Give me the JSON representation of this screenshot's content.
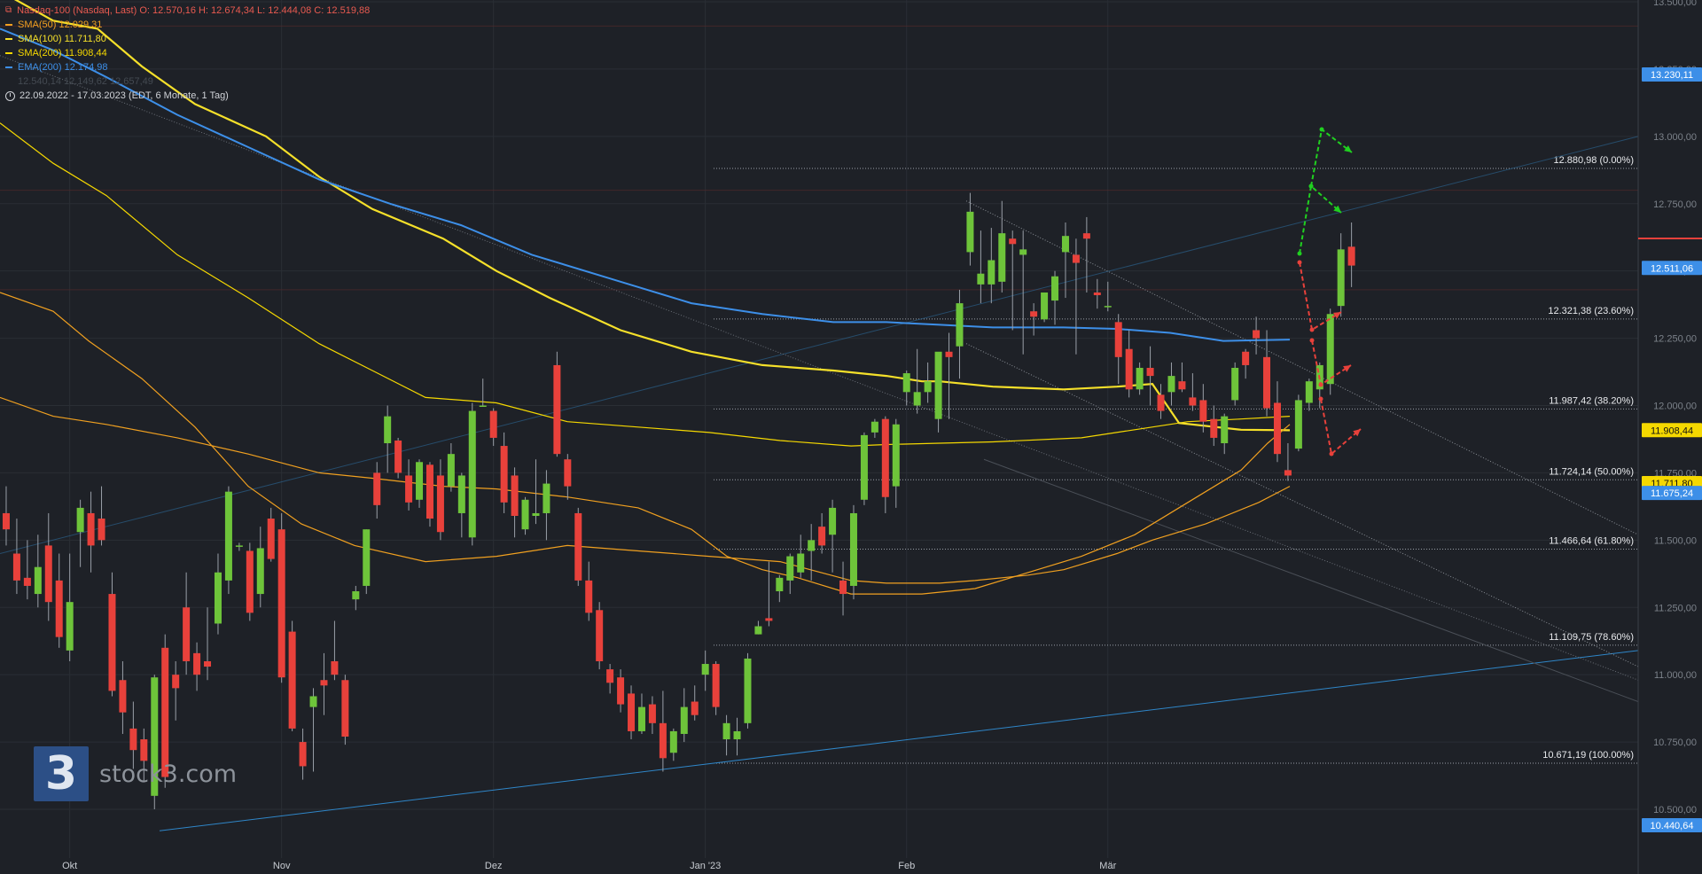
{
  "legend": {
    "header": "Nasdaq-100 (Nasdaq, Last)  O: 12.570,16  H: 12.674,34  L: 12.444,08  C: 12.519,88",
    "sma50": "SMA(50)  12.029,31",
    "sma100": "SMA(100)  11.711,80",
    "sma200": "SMA(200)  11.908,44",
    "ema200": "EMA(200)  12.174,98",
    "sub": "12.540,14  12.149,62  12.657,49",
    "date_range": "22.09.2022 - 17.03.2023   (EDT, 6 Monate, 1 Tag)"
  },
  "logo": {
    "mark": "3",
    "name": "stock3.com"
  },
  "colors": {
    "up": "#6ec43a",
    "down": "#e8413b",
    "background": "#1e2127",
    "sma50": "#f0a020",
    "sma100": "#f5e02a",
    "sma200": "#f5d800",
    "ema200": "#3d8fe8"
  },
  "chart_data": {
    "type": "candlestick",
    "ylim": [
      10400,
      13600
    ],
    "y_ticks": [
      "10.500,00",
      "10.750,00",
      "11.000,00",
      "11.250,00",
      "11.500,00",
      "11.750,00",
      "12.000,00",
      "12.250,00",
      "12.500,00",
      "12.750,00",
      "13.000,00",
      "13.250,00",
      "13.500,00"
    ],
    "y_tick_values": [
      10500,
      10750,
      11000,
      11250,
      11500,
      11750,
      12000,
      12250,
      12500,
      12750,
      13000,
      13250,
      13500
    ],
    "x_labels": [
      "Okt",
      "Nov",
      "Dez",
      "Jan '23",
      "Feb",
      "Mär"
    ],
    "x_label_index": [
      6,
      26,
      46,
      66,
      85,
      104
    ],
    "ohlc": [
      [
        11600,
        11700,
        11480,
        11540
      ],
      [
        11450,
        11580,
        11300,
        11350
      ],
      [
        11360,
        11500,
        11280,
        11330
      ],
      [
        11300,
        11520,
        11250,
        11400
      ],
      [
        11480,
        11600,
        11200,
        11270
      ],
      [
        11350,
        11450,
        11100,
        11140
      ],
      [
        11090,
        11450,
        11050,
        11270
      ],
      [
        11530,
        11650,
        11400,
        11620
      ],
      [
        11600,
        11680,
        11380,
        11480
      ],
      [
        11580,
        11700,
        11480,
        11500
      ],
      [
        11300,
        11380,
        10920,
        10940
      ],
      [
        10980,
        11050,
        10780,
        10860
      ],
      [
        10800,
        10900,
        10650,
        10720
      ],
      [
        10760,
        10800,
        10600,
        10680
      ],
      [
        10550,
        11000,
        10500,
        10990
      ],
      [
        11100,
        11150,
        10580,
        10620
      ],
      [
        11000,
        11050,
        10830,
        10950
      ],
      [
        11250,
        11380,
        11000,
        11050
      ],
      [
        11080,
        11120,
        10940,
        11000
      ],
      [
        11050,
        11250,
        10980,
        11030
      ],
      [
        11190,
        11450,
        11150,
        11380
      ],
      [
        11350,
        11700,
        11300,
        11680
      ],
      [
        11480,
        11490,
        11460,
        11480
      ],
      [
        11460,
        11490,
        11200,
        11230
      ],
      [
        11300,
        11550,
        11250,
        11470
      ],
      [
        11580,
        11620,
        11420,
        11430
      ],
      [
        11540,
        11600,
        10970,
        10990
      ],
      [
        11160,
        11200,
        10790,
        10800
      ],
      [
        10750,
        10800,
        10610,
        10660
      ],
      [
        10880,
        10950,
        10640,
        10920
      ],
      [
        10980,
        11080,
        10850,
        10960
      ],
      [
        11050,
        11200,
        10980,
        11000
      ],
      [
        10980,
        11000,
        10740,
        10770
      ],
      [
        11280,
        11330,
        11240,
        11310
      ],
      [
        11330,
        11540,
        11300,
        11540
      ],
      [
        11750,
        11790,
        11580,
        11630
      ],
      [
        11860,
        12000,
        11750,
        11960
      ],
      [
        11870,
        11880,
        11730,
        11750
      ],
      [
        11740,
        11800,
        11610,
        11640
      ],
      [
        11650,
        11800,
        11620,
        11790
      ],
      [
        11780,
        11790,
        11550,
        11580
      ],
      [
        11740,
        11800,
        11500,
        11530
      ],
      [
        11700,
        11860,
        11680,
        11820
      ],
      [
        11600,
        11750,
        11510,
        11740
      ],
      [
        11510,
        12010,
        11480,
        11980
      ],
      [
        12000,
        12100,
        12000,
        12000
      ],
      [
        11980,
        11990,
        11850,
        11880
      ],
      [
        11850,
        11900,
        11600,
        11640
      ],
      [
        11740,
        11770,
        11510,
        11590
      ],
      [
        11540,
        11660,
        11520,
        11650
      ],
      [
        11590,
        11800,
        11560,
        11600
      ],
      [
        11600,
        11760,
        11500,
        11710
      ],
      [
        12150,
        12200,
        11810,
        11820
      ],
      [
        11800,
        11820,
        11650,
        11700
      ],
      [
        11600,
        11620,
        11330,
        11350
      ],
      [
        11350,
        11420,
        11200,
        11230
      ],
      [
        11240,
        11270,
        11020,
        11050
      ],
      [
        11020,
        11040,
        10930,
        10970
      ],
      [
        10990,
        11020,
        10860,
        10890
      ],
      [
        10930,
        10960,
        10760,
        10790
      ],
      [
        10790,
        10930,
        10780,
        10880
      ],
      [
        10890,
        10920,
        10780,
        10820
      ],
      [
        10820,
        10940,
        10640,
        10690
      ],
      [
        10710,
        10800,
        10680,
        10790
      ],
      [
        10780,
        10950,
        10750,
        10880
      ],
      [
        10900,
        10960,
        10830,
        10850
      ],
      [
        11000,
        11090,
        10940,
        11040
      ],
      [
        11040,
        11050,
        10850,
        10880
      ],
      [
        10760,
        10850,
        10700,
        10820
      ],
      [
        10760,
        10840,
        10700,
        10790
      ],
      [
        10820,
        11080,
        10800,
        11060
      ],
      [
        11150,
        11200,
        11150,
        11180
      ],
      [
        11210,
        11420,
        11180,
        11200
      ],
      [
        11310,
        11370,
        11270,
        11360
      ],
      [
        11350,
        11450,
        11300,
        11440
      ],
      [
        11380,
        11520,
        11360,
        11450
      ],
      [
        11460,
        11560,
        11350,
        11500
      ],
      [
        11550,
        11600,
        11450,
        11480
      ],
      [
        11520,
        11650,
        11380,
        11620
      ],
      [
        11350,
        11420,
        11220,
        11300
      ],
      [
        11330,
        11630,
        11280,
        11600
      ],
      [
        11650,
        11900,
        11630,
        11890
      ],
      [
        11900,
        11950,
        11880,
        11940
      ],
      [
        11950,
        11960,
        11600,
        11660
      ],
      [
        11700,
        11950,
        11620,
        11930
      ],
      [
        12050,
        12130,
        12000,
        12120
      ],
      [
        12000,
        12210,
        11970,
        12050
      ],
      [
        12050,
        12160,
        12010,
        12090
      ],
      [
        11950,
        12180,
        11900,
        12200
      ],
      [
        12200,
        12270,
        11950,
        12180
      ],
      [
        12220,
        12430,
        12100,
        12380
      ],
      [
        12570,
        12790,
        12520,
        12720
      ],
      [
        12450,
        12650,
        12380,
        12490
      ],
      [
        12450,
        12660,
        12380,
        12540
      ],
      [
        12460,
        12760,
        12420,
        12640
      ],
      [
        12620,
        12650,
        12280,
        12600
      ],
      [
        12560,
        12650,
        12190,
        12580
      ],
      [
        12350,
        12380,
        12260,
        12330
      ],
      [
        12320,
        12420,
        12310,
        12420
      ],
      [
        12390,
        12500,
        12300,
        12480
      ],
      [
        12570,
        12680,
        12400,
        12630
      ],
      [
        12560,
        12620,
        12190,
        12530
      ],
      [
        12640,
        12700,
        12420,
        12620
      ],
      [
        12420,
        12470,
        12360,
        12410
      ],
      [
        12370,
        12460,
        12350,
        12370
      ],
      [
        12310,
        12340,
        12080,
        12180
      ],
      [
        12210,
        12280,
        12030,
        12060
      ],
      [
        12060,
        12160,
        12040,
        12140
      ],
      [
        12140,
        12220,
        12000,
        12110
      ],
      [
        12040,
        12080,
        11950,
        11980
      ],
      [
        12050,
        12160,
        12000,
        12110
      ],
      [
        12090,
        12160,
        12050,
        12060
      ],
      [
        12030,
        12120,
        11980,
        12000
      ],
      [
        12020,
        12080,
        11900,
        11940
      ],
      [
        11950,
        12000,
        11850,
        11880
      ],
      [
        11860,
        11970,
        11820,
        11960
      ],
      [
        12020,
        12160,
        12000,
        12140
      ],
      [
        12200,
        12210,
        12100,
        12150
      ],
      [
        12280,
        12330,
        12190,
        12250
      ],
      [
        12180,
        12280,
        11960,
        11990
      ],
      [
        12010,
        12090,
        11790,
        11820
      ],
      [
        11760,
        11860,
        11720,
        11740
      ],
      [
        11840,
        12040,
        11830,
        12020
      ],
      [
        12010,
        12100,
        11980,
        12090
      ],
      [
        12060,
        12160,
        11990,
        12150
      ],
      [
        12080,
        12360,
        12040,
        12340
      ],
      [
        12370,
        12640,
        12330,
        12580
      ],
      [
        12590,
        12680,
        12440,
        12520
      ]
    ],
    "series": [
      {
        "name": "SMA(50)",
        "values_from_index": 0,
        "last": 12029.31
      },
      {
        "name": "SMA(100)",
        "last": 11711.8
      },
      {
        "name": "SMA(200)",
        "last": 11908.44
      },
      {
        "name": "EMA(200)",
        "last": 12174.98
      }
    ],
    "fibonacci": [
      {
        "value": 12880.98,
        "label": "12.880,98 (0.00%)"
      },
      {
        "value": 12321.38,
        "label": "12.321,38 (23.60%)"
      },
      {
        "value": 11987.42,
        "label": "11.987,42 (38.20%)"
      },
      {
        "value": 11724.14,
        "label": "11.724,14 (50.00%)"
      },
      {
        "value": 11466.64,
        "label": "11.466,64 (61.80%)"
      },
      {
        "value": 11109.75,
        "label": "11.109,75 (78.60%)"
      },
      {
        "value": 10671.19,
        "label": "10.671,19 (100.00%)"
      }
    ],
    "price_tags": [
      {
        "value": 13230.11,
        "label": "13.230,11",
        "color": "#3d8fe8"
      },
      {
        "value": 12511.06,
        "label": "12.511,06",
        "color": "#3d8fe8"
      },
      {
        "value": 11908.44,
        "label": "11.908,44",
        "color": "#f5d800"
      },
      {
        "value": 11711.8,
        "label": "11.711,80",
        "color": "#f5d800"
      },
      {
        "value": 11675.24,
        "label": "11.675,24",
        "color": "#3d8fe8"
      },
      {
        "value": 10440.64,
        "label": "10.440,64",
        "color": "#3d8fe8"
      }
    ]
  }
}
